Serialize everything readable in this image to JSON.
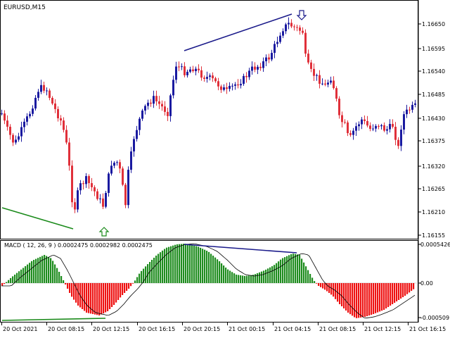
{
  "window": {
    "title": "EURUSD,M15"
  },
  "indicator": {
    "label": "MACD ( 12, 26, 9 ) 0.0002475 0.0002982 0.0002475",
    "axis_labels": [
      "0.0005426",
      "0.00",
      "-0.000509"
    ]
  },
  "price_axis": [
    "1.16650",
    "1.16595",
    "1.16540",
    "1.16485",
    "1.16430",
    "1.16375",
    "1.16320",
    "1.16265",
    "1.16210",
    "1.16155"
  ],
  "time_axis": [
    "20 Oct 2021",
    "20 Oct 08:15",
    "20 Oct 12:15",
    "20 Oct 16:15",
    "20 Oct 20:15",
    "21 Oct 00:15",
    "21 Oct 04:15",
    "21 Oct 08:15",
    "21 Oct 12:15",
    "21 Oct 16:15"
  ],
  "signals": {
    "buy_arrow_icon": "up-arrow-green",
    "sell_arrow_icon": "down-arrow-blue"
  },
  "colors": {
    "bull": "#1a1aa0",
    "bear": "#e0303a",
    "hist_pos": "#1e8c1e",
    "hist_neg": "#ee1111",
    "div_top": "#1a1a8a",
    "div_bottom": "#1a8a1a"
  }
}
